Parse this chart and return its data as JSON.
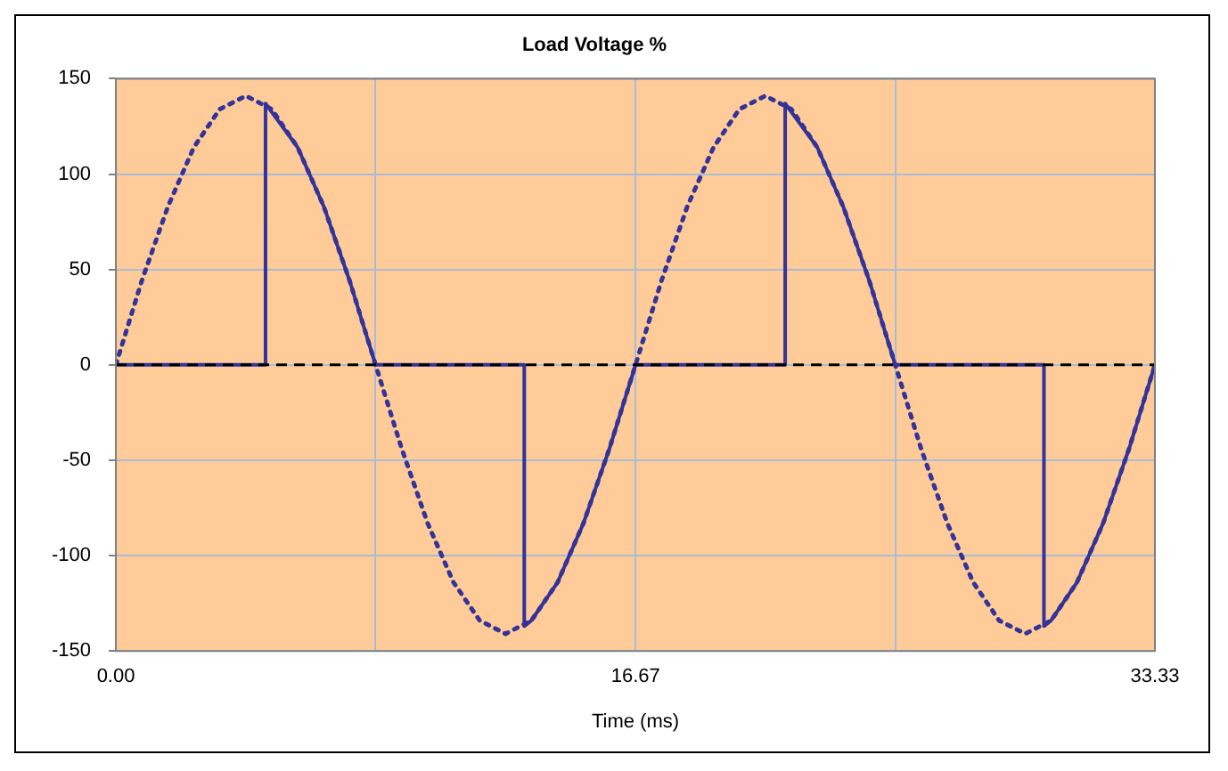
{
  "chart_data": {
    "type": "line",
    "title": "Load Voltage %",
    "xlabel": "Time (ms)",
    "xlim": [
      0,
      33.33
    ],
    "xticks": [
      {
        "value": 0,
        "label": "0.00"
      },
      {
        "value": 8.33,
        "label": null
      },
      {
        "value": 16.67,
        "label": "16.67"
      },
      {
        "value": 25,
        "label": null
      },
      {
        "value": 33.33,
        "label": "33.33"
      }
    ],
    "ylim": [
      -150,
      150
    ],
    "yticks": [
      -150,
      -100,
      -50,
      0,
      50,
      100,
      150
    ],
    "grid": true,
    "legend": false,
    "marker": "none",
    "series": [
      {
        "color": "#333399",
        "line_style": "dotted",
        "x": [
          0,
          0.83,
          1.67,
          2.5,
          3.33,
          4.17,
          5,
          5.83,
          6.67,
          7.5,
          8.33,
          9.17,
          10,
          10.83,
          11.67,
          12.5,
          13.33,
          14.17,
          15,
          15.83,
          16.67,
          17.5,
          18.33,
          19.17,
          20,
          20.83,
          21.67,
          22.5,
          23.33,
          24.17,
          25,
          25.83,
          26.67,
          27.5,
          28.33,
          29.17,
          30,
          30.83,
          31.67,
          32.5,
          33.33
        ],
        "values": [
          0,
          44,
          83,
          114,
          134,
          141,
          134,
          114,
          83,
          44,
          0,
          -44,
          -83,
          -114,
          -134,
          -141,
          -134,
          -114,
          -83,
          -44,
          0,
          44,
          83,
          114,
          134,
          141,
          134,
          114,
          83,
          44,
          0,
          -44,
          -83,
          -114,
          -134,
          -141,
          -134,
          -114,
          -83,
          -44,
          0
        ]
      },
      {
        "color": "#333399",
        "line_style": "solid",
        "x": [
          0,
          4.8,
          4.8,
          5.83,
          6.67,
          7.5,
          8.33,
          13.1,
          13.1,
          13.33,
          14.17,
          15,
          15.83,
          16.67,
          21.47,
          21.47,
          22.5,
          23.33,
          24.17,
          25,
          29.77,
          29.77,
          30,
          30.83,
          31.67,
          32.5,
          33.33
        ],
        "values": [
          0,
          0,
          137,
          114,
          83,
          44,
          0,
          0,
          -137,
          -134,
          -114,
          -83,
          -44,
          0,
          0,
          137,
          114,
          83,
          44,
          0,
          0,
          -137,
          -134,
          -114,
          -83,
          -44,
          0
        ]
      }
    ],
    "ref_lines": [
      {
        "axis": "y",
        "value": 0,
        "color": "#000000",
        "line_style": "dashed"
      }
    ]
  }
}
